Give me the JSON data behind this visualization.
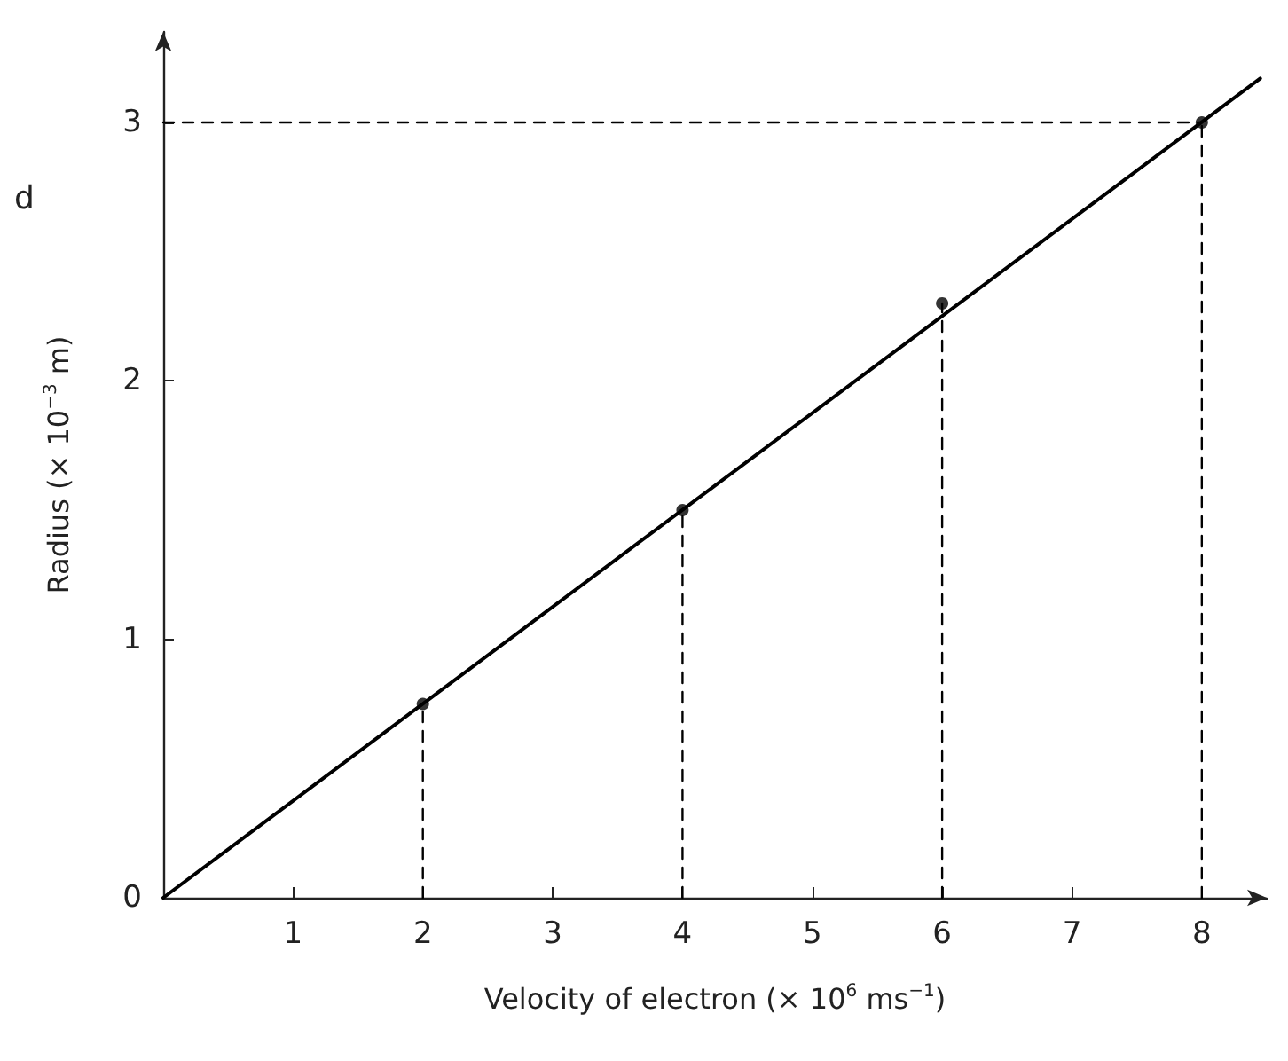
{
  "chart_data": {
    "type": "scatter",
    "xlabel": "Velocity of electron (× 10$^{6}$ ms$^{−1}$)",
    "ylabel": "Radius (× 10$^{−3}$ m)",
    "xlim": [
      0,
      8.5
    ],
    "xticks": [
      1,
      2,
      3,
      4,
      5,
      6,
      7,
      8
    ],
    "ylim": [
      0,
      3.35
    ],
    "yticks": [
      0,
      1,
      2,
      3
    ],
    "grid": false,
    "marker": "circle",
    "annotations": [
      "d"
    ],
    "series": [
      {
        "type": "line",
        "color": "#000000",
        "marker": "none",
        "line_style": "solid",
        "x": [
          0,
          8.45
        ],
        "values": [
          0,
          3.17
        ]
      },
      {
        "type": "line",
        "color": "#000000",
        "marker": "none",
        "line_style": "dashed",
        "x": [
          2,
          2
        ],
        "values": [
          0,
          0.75
        ]
      },
      {
        "type": "line",
        "color": "#000000",
        "marker": "none",
        "line_style": "dashed",
        "x": [
          4,
          4
        ],
        "values": [
          0,
          1.5
        ]
      },
      {
        "type": "line",
        "color": "#000000",
        "marker": "none",
        "line_style": "dashed",
        "x": [
          6,
          6
        ],
        "values": [
          0,
          2.3
        ]
      },
      {
        "type": "line",
        "color": "#000000",
        "marker": "none",
        "line_style": "dashed",
        "x": [
          8,
          8
        ],
        "values": [
          0,
          3
        ]
      },
      {
        "type": "line",
        "color": "#000000",
        "marker": "none",
        "line_style": "dashed",
        "x": [
          0,
          8
        ],
        "values": [
          3,
          3
        ]
      },
      {
        "color": "#000000",
        "x": [
          2,
          4,
          6,
          8
        ],
        "values": [
          0.75,
          1.5,
          2.3,
          3
        ]
      }
    ]
  }
}
